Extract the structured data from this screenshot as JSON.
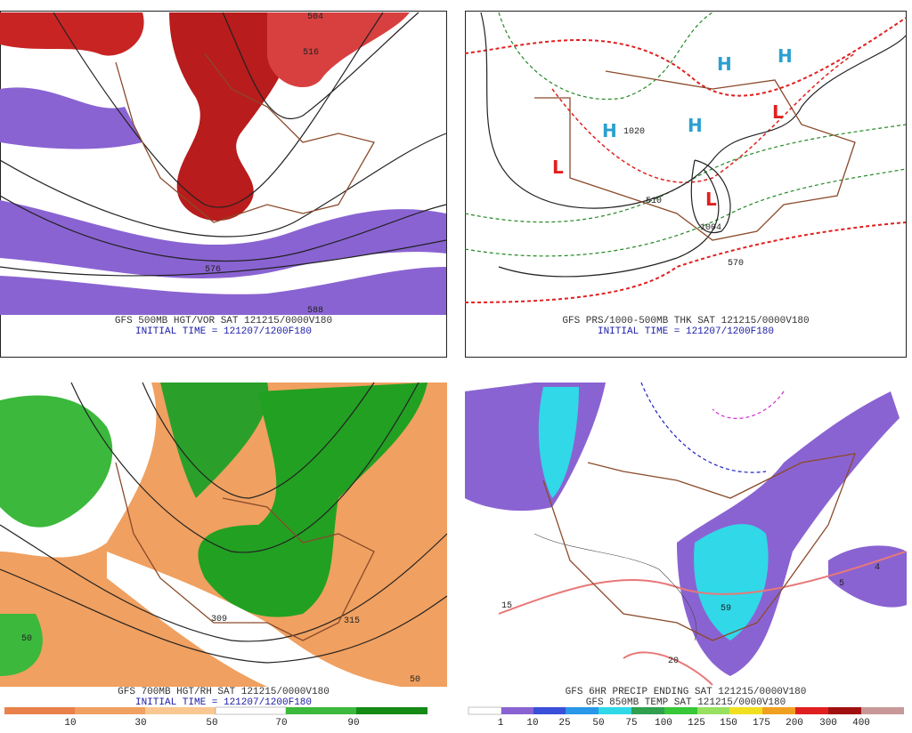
{
  "panels": [
    {
      "caption": [
        "GFS 500MB HGT/VOR SAT 121215/0000V180",
        "INITIAL TIME = 121207/1200F180"
      ],
      "labels": [
        "504",
        "516",
        "576",
        "588"
      ]
    },
    {
      "caption": [
        "GFS PRS/1000-500MB THK SAT 121215/0000V180",
        "INITIAL TIME = 121207/1200F180"
      ],
      "labels": [
        "H",
        "H",
        "H",
        "H",
        "L",
        "L",
        "L",
        "1020",
        "1004",
        "570",
        "510"
      ]
    },
    {
      "caption": [
        "GFS 700MB HGT/RH SAT 121215/0000V180",
        "INITIAL TIME = 121207/1200F180"
      ],
      "labels": [
        "309",
        "315",
        "50",
        "50"
      ],
      "colorbar": [
        "10",
        "30",
        "50",
        "70",
        "90"
      ]
    },
    {
      "caption": [
        "GFS 6HR PRECIP ENDING SAT 121215/0000V180",
        "GFS 850MB TEMP SAT 121215/0000V180"
      ],
      "labels": [
        "20",
        "15",
        "59",
        "5",
        "4"
      ],
      "colorbar": [
        "1",
        "10",
        "25",
        "50",
        "75",
        "100",
        "125",
        "150",
        "175",
        "200",
        "300",
        "400"
      ]
    }
  ]
}
